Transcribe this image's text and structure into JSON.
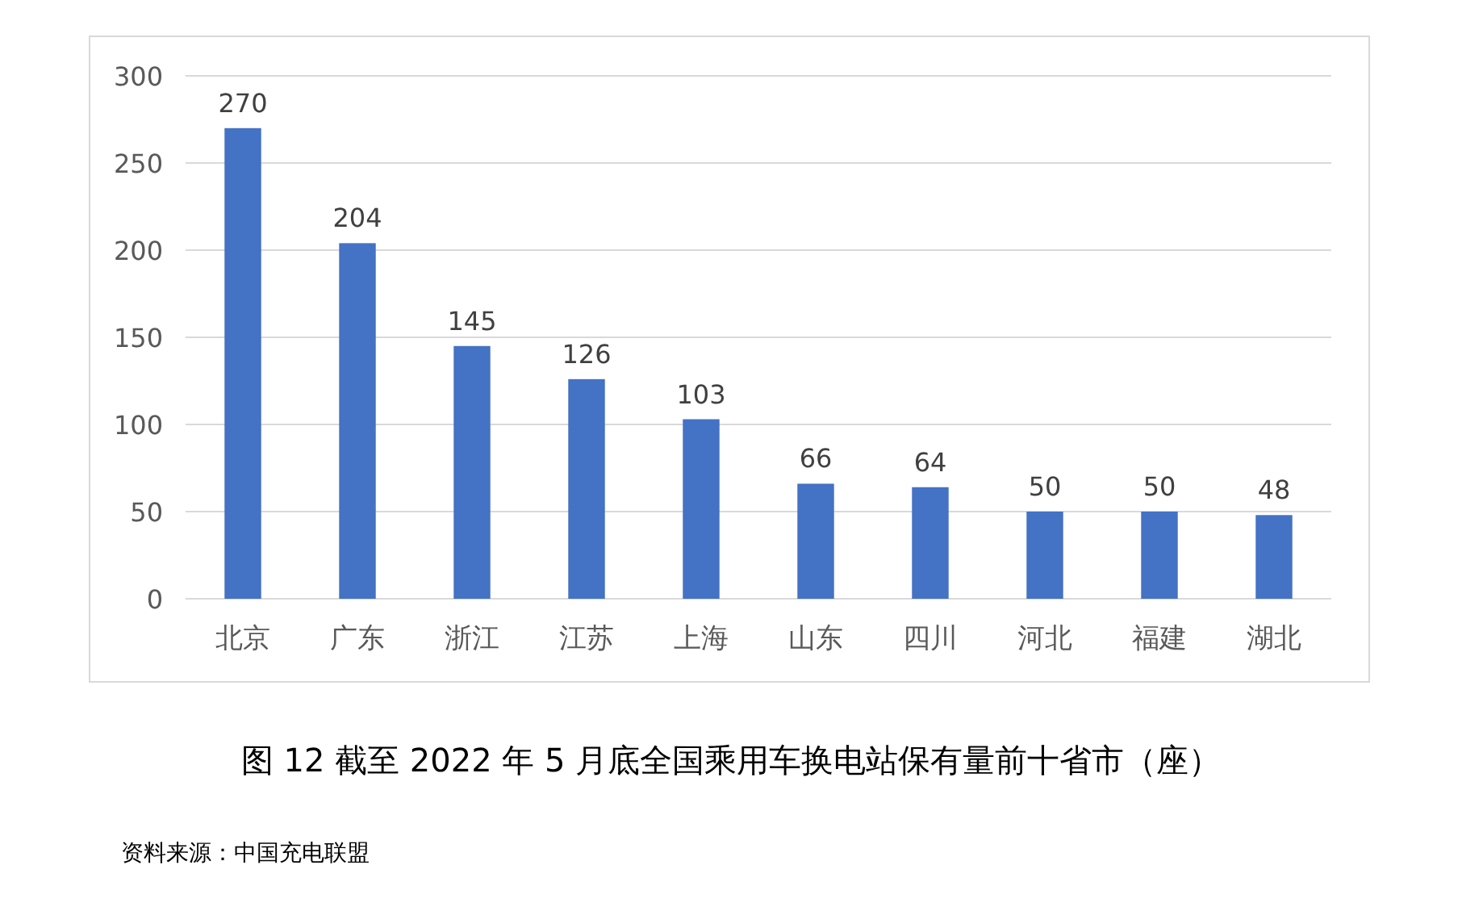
{
  "chart_data": {
    "type": "bar",
    "title": "图 12 截至 2022 年 5 月底全国乘用车换电站保有量前十省市（座）",
    "annotations": [
      "资料来源：中国充电联盟"
    ],
    "categories": [
      "北京",
      "广东",
      "浙江",
      "江苏",
      "上海",
      "山东",
      "四川",
      "河北",
      "福建",
      "湖北"
    ],
    "values": [
      270,
      204,
      145,
      126,
      103,
      66,
      64,
      50,
      50,
      48
    ],
    "color": "#4472c4",
    "ylim": [
      0,
      300
    ],
    "yticks": [
      0,
      50,
      100,
      150,
      200,
      250,
      300
    ],
    "grid": "y",
    "data_labels": true
  }
}
